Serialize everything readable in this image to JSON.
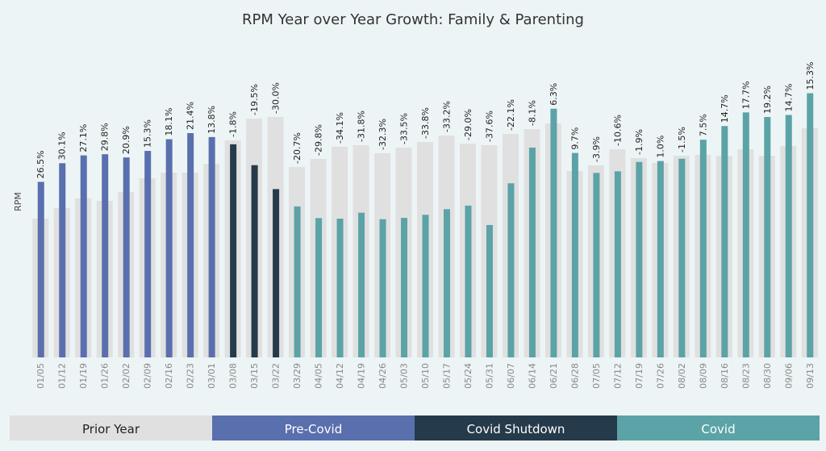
{
  "chart_data": {
    "type": "bar",
    "title": "RPM Year over Year Growth: Family & Parenting",
    "y_label": "RPM",
    "categories": [
      "01/05",
      "01/12",
      "01/19",
      "01/26",
      "02/02",
      "02/09",
      "02/16",
      "02/23",
      "03/01",
      "03/08",
      "03/15",
      "03/22",
      "03/29",
      "04/05",
      "04/12",
      "04/19",
      "04/26",
      "05/03",
      "05/10",
      "05/17",
      "05/24",
      "05/31",
      "06/07",
      "06/14",
      "06/21",
      "06/28",
      "07/05",
      "07/12",
      "07/19",
      "07/26",
      "08/02",
      "08/09",
      "08/16",
      "08/23",
      "08/30",
      "09/06",
      "09/13"
    ],
    "prior_year": {
      "color": "#e0e0e0",
      "values": [
        172,
        185,
        197,
        194,
        205,
        222,
        229,
        229,
        240,
        269,
        296,
        298,
        236,
        246,
        261,
        263,
        253,
        260,
        267,
        275,
        265,
        263,
        277,
        283,
        290,
        231,
        238,
        258,
        247,
        241,
        250,
        251,
        250,
        258,
        250,
        262,
        284
      ]
    },
    "growth": {
      "values": [
        26.5,
        30.1,
        27.1,
        29.8,
        20.9,
        15.3,
        18.1,
        21.4,
        13.8,
        -1.8,
        -19.5,
        -30.0,
        -20.7,
        -29.8,
        -34.1,
        -31.8,
        -32.3,
        -33.5,
        -33.8,
        -33.2,
        -29.0,
        -37.6,
        -22.1,
        -8.1,
        6.3,
        9.7,
        -3.9,
        -10.6,
        -1.9,
        1.0,
        -1.5,
        7.5,
        14.7,
        17.7,
        19.2,
        14.7,
        15.3
      ],
      "value_labels": [
        "26.5%",
        "30.1%",
        "27.1%",
        "29.8%",
        "20.9%",
        "15.3%",
        "18.1%",
        "21.4%",
        "13.8%",
        "-1.8%",
        "-19.5%",
        "-30.0%",
        "-20.7%",
        "-29.8%",
        "-34.1%",
        "-31.8%",
        "-32.3%",
        "-33.5%",
        "-33.8%",
        "-33.2%",
        "-29.0%",
        "-37.6%",
        "-22.1%",
        "-8.1%",
        "6.3%",
        "9.7%",
        "-3.9%",
        "-10.6%",
        "-1.9%",
        "1.0%",
        "-1.5%",
        "7.5%",
        "14.7%",
        "17.7%",
        "19.2%",
        "14.7%",
        "15.3%"
      ]
    },
    "colors": [
      "#5a6fae",
      "#5a6fae",
      "#5a6fae",
      "#5a6fae",
      "#5a6fae",
      "#5a6fae",
      "#5a6fae",
      "#5a6fae",
      "#5a6fae",
      "#253a4a",
      "#253a4a",
      "#253a4a",
      "#5ba3a7",
      "#5ba3a7",
      "#5ba3a7",
      "#5ba3a7",
      "#5ba3a7",
      "#5ba3a7",
      "#5ba3a7",
      "#5ba3a7",
      "#5ba3a7",
      "#5ba3a7",
      "#5ba3a7",
      "#5ba3a7",
      "#5ba3a7",
      "#5ba3a7",
      "#5ba3a7",
      "#5ba3a7",
      "#5ba3a7",
      "#5ba3a7",
      "#5ba3a7",
      "#5ba3a7",
      "#5ba3a7",
      "#5ba3a7",
      "#5ba3a7",
      "#5ba3a7",
      "#5ba3a7"
    ],
    "ylim": [
      0,
      400
    ],
    "legend": [
      {
        "name": "Prior Year",
        "color": "#e0e0e0"
      },
      {
        "name": "Pre-Covid",
        "color": "#5a6fae"
      },
      {
        "name": "Covid Shutdown",
        "color": "#253a4a"
      },
      {
        "name": "Covid",
        "color": "#5ba3a7"
      }
    ]
  }
}
